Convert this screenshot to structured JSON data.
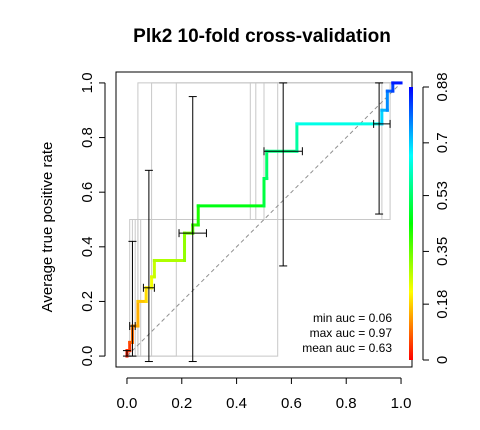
{
  "chart_data": {
    "type": "line",
    "title": "Plk2 10-fold cross-validation",
    "ylabel": "Average true positive rate",
    "xlabel": "",
    "xlim": [
      -0.04,
      1.04
    ],
    "ylim": [
      -0.04,
      1.04
    ],
    "xticks": [
      0.0,
      0.2,
      0.4,
      0.6,
      0.8,
      1.0
    ],
    "xtick_labels": [
      "0.0",
      "0.2",
      "0.4",
      "0.6",
      "0.8",
      "1.0"
    ],
    "yticks": [
      0.0,
      0.2,
      0.4,
      0.6,
      0.8,
      1.0
    ],
    "ytick_labels": [
      "0.0",
      "0.2",
      "0.4",
      "0.6",
      "0.8",
      "1.0"
    ],
    "colorbar": {
      "ticks": [
        0.0,
        0.18,
        0.35,
        0.53,
        0.7,
        0.88
      ],
      "tick_labels": [
        "0",
        "0.18",
        "0.35",
        "0.53",
        "0.7",
        "0.88"
      ],
      "min": 0.0,
      "max": 0.88,
      "colormap": [
        "#ff0000",
        "#ffff00",
        "#00ff00",
        "#00ffff",
        "#0000ff"
      ]
    },
    "series": [
      {
        "style": "mean-roc-colored",
        "points": [
          {
            "x": 0.0,
            "y": 0.0,
            "t": 0.86
          },
          {
            "x": 0.0,
            "y": 0.02,
            "t": 0.85
          },
          {
            "x": 0.01,
            "y": 0.02,
            "t": 0.84
          },
          {
            "x": 0.01,
            "y": 0.05,
            "t": 0.82
          },
          {
            "x": 0.02,
            "y": 0.05,
            "t": 0.8
          },
          {
            "x": 0.02,
            "y": 0.11,
            "t": 0.77
          },
          {
            "x": 0.04,
            "y": 0.11,
            "t": 0.74
          },
          {
            "x": 0.04,
            "y": 0.2,
            "t": 0.72
          },
          {
            "x": 0.07,
            "y": 0.2,
            "t": 0.7
          },
          {
            "x": 0.07,
            "y": 0.25,
            "t": 0.68
          },
          {
            "x": 0.09,
            "y": 0.25,
            "t": 0.66
          },
          {
            "x": 0.09,
            "y": 0.29,
            "t": 0.64
          },
          {
            "x": 0.1,
            "y": 0.29,
            "t": 0.62
          },
          {
            "x": 0.1,
            "y": 0.35,
            "t": 0.6
          },
          {
            "x": 0.21,
            "y": 0.35,
            "t": 0.58
          },
          {
            "x": 0.21,
            "y": 0.45,
            "t": 0.55
          },
          {
            "x": 0.24,
            "y": 0.45,
            "t": 0.53
          },
          {
            "x": 0.24,
            "y": 0.48,
            "t": 0.5
          },
          {
            "x": 0.26,
            "y": 0.48,
            "t": 0.48
          },
          {
            "x": 0.26,
            "y": 0.55,
            "t": 0.45
          },
          {
            "x": 0.5,
            "y": 0.55,
            "t": 0.4
          },
          {
            "x": 0.5,
            "y": 0.65,
            "t": 0.37
          },
          {
            "x": 0.51,
            "y": 0.65,
            "t": 0.36
          },
          {
            "x": 0.51,
            "y": 0.75,
            "t": 0.34
          },
          {
            "x": 0.62,
            "y": 0.75,
            "t": 0.32
          },
          {
            "x": 0.62,
            "y": 0.85,
            "t": 0.28
          },
          {
            "x": 0.93,
            "y": 0.85,
            "t": 0.2
          },
          {
            "x": 0.93,
            "y": 0.9,
            "t": 0.17
          },
          {
            "x": 0.95,
            "y": 0.9,
            "t": 0.14
          },
          {
            "x": 0.95,
            "y": 0.97,
            "t": 0.1
          },
          {
            "x": 0.97,
            "y": 0.97,
            "t": 0.07
          },
          {
            "x": 0.97,
            "y": 1.0,
            "t": 0.04
          },
          {
            "x": 1.0,
            "y": 1.0,
            "t": 0.0
          }
        ]
      }
    ],
    "fold_lines": [
      [
        {
          "x": 0.0,
          "y": 0.0
        },
        {
          "x": 0.04,
          "y": 0.0
        },
        {
          "x": 0.04,
          "y": 1.0
        },
        {
          "x": 1.0,
          "y": 1.0
        }
      ],
      [
        {
          "x": 0.0,
          "y": 0.0
        },
        {
          "x": 0.09,
          "y": 0.0
        },
        {
          "x": 0.09,
          "y": 1.0
        },
        {
          "x": 1.0,
          "y": 1.0
        }
      ],
      [
        {
          "x": 0.0,
          "y": 0.0
        },
        {
          "x": 0.02,
          "y": 0.0
        },
        {
          "x": 0.02,
          "y": 0.5
        },
        {
          "x": 0.45,
          "y": 0.5
        },
        {
          "x": 0.45,
          "y": 1.0
        },
        {
          "x": 1.0,
          "y": 1.0
        }
      ],
      [
        {
          "x": 0.0,
          "y": 0.0
        },
        {
          "x": 0.03,
          "y": 0.0
        },
        {
          "x": 0.03,
          "y": 0.5
        },
        {
          "x": 0.47,
          "y": 0.5
        },
        {
          "x": 0.47,
          "y": 1.0
        },
        {
          "x": 1.0,
          "y": 1.0
        }
      ],
      [
        {
          "x": 0.0,
          "y": 0.0
        },
        {
          "x": 0.04,
          "y": 0.0
        },
        {
          "x": 0.04,
          "y": 0.5
        },
        {
          "x": 0.93,
          "y": 0.5
        },
        {
          "x": 0.93,
          "y": 1.0
        },
        {
          "x": 1.0,
          "y": 1.0
        }
      ],
      [
        {
          "x": 0.0,
          "y": 0.0
        },
        {
          "x": 0.01,
          "y": 0.0
        },
        {
          "x": 0.01,
          "y": 0.5
        },
        {
          "x": 0.96,
          "y": 0.5
        },
        {
          "x": 0.96,
          "y": 1.0
        },
        {
          "x": 1.0,
          "y": 1.0
        }
      ],
      [
        {
          "x": 0.0,
          "y": 0.0
        },
        {
          "x": 0.18,
          "y": 0.0
        },
        {
          "x": 0.18,
          "y": 1.0
        },
        {
          "x": 1.0,
          "y": 1.0
        }
      ],
      [
        {
          "x": 0.0,
          "y": 0.0
        },
        {
          "x": 0.55,
          "y": 0.0
        },
        {
          "x": 0.55,
          "y": 1.0
        },
        {
          "x": 1.0,
          "y": 1.0
        }
      ],
      [
        {
          "x": 0.0,
          "y": 0.0
        },
        {
          "x": 0.05,
          "y": 0.0
        },
        {
          "x": 0.05,
          "y": 0.5
        },
        {
          "x": 0.5,
          "y": 0.5
        },
        {
          "x": 0.5,
          "y": 1.0
        },
        {
          "x": 1.0,
          "y": 1.0
        }
      ]
    ],
    "vertical_error_bars": [
      {
        "x": 0.0,
        "ylo": 0.0,
        "yhi": 0.02
      },
      {
        "x": 0.02,
        "ylo": 0.0,
        "yhi": 0.42
      },
      {
        "x": 0.08,
        "ylo": -0.02,
        "yhi": 0.68
      },
      {
        "x": 0.24,
        "ylo": -0.02,
        "yhi": 0.95
      },
      {
        "x": 0.57,
        "ylo": 0.33,
        "yhi": 1.0
      },
      {
        "x": 0.92,
        "ylo": 0.52,
        "yhi": 1.0
      }
    ],
    "horizontal_error_bars": [
      {
        "y": 0.11,
        "xlo": 0.01,
        "xhi": 0.03
      },
      {
        "y": 0.25,
        "xlo": 0.06,
        "xhi": 0.1
      },
      {
        "y": 0.45,
        "xlo": 0.19,
        "xhi": 0.29
      },
      {
        "y": 0.75,
        "xlo": 0.5,
        "xhi": 0.64
      },
      {
        "y": 0.85,
        "xlo": 0.9,
        "xhi": 0.96
      }
    ],
    "reference_line": [
      {
        "x": 0.0,
        "y": 0.0
      },
      {
        "x": 1.0,
        "y": 1.0
      }
    ],
    "annotations": [
      "min auc = 0.06",
      "max auc = 0.97",
      "mean auc = 0.63"
    ]
  }
}
